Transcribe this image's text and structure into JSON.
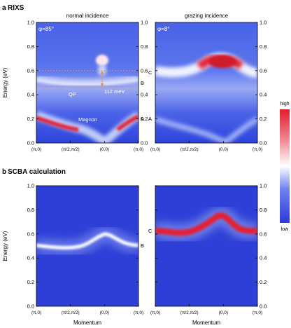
{
  "panel_a": {
    "label": "a",
    "heading": "RIXS",
    "left_title": "normal incidence",
    "right_title": "grazing incidence",
    "left_phi": "φ=85°",
    "right_phi": "φ=8°",
    "qp_label": "QP",
    "magnon_label": "Magnon",
    "gap_label": "112 meV",
    "side_labels_left": [
      "B",
      "A"
    ],
    "side_labels_right": [
      "C",
      "A"
    ]
  },
  "panel_b": {
    "label": "b",
    "heading": "SCBA calculation",
    "side_label_left": "B",
    "side_label_right": "C"
  },
  "colorbar": {
    "high": "high",
    "low": "low",
    "colors": [
      "#2b3bd6",
      "#6f83f0",
      "#ffffff",
      "#f07e8c",
      "#e0202c"
    ]
  },
  "axes": {
    "ylabel": "Energy (eV)",
    "xlabel": "Momentum",
    "yticks": [
      "0.0",
      "0.2",
      "0.4",
      "0.6",
      "0.8",
      "1.0"
    ],
    "xticks": [
      "(π,0)",
      "(π/2,π/2)",
      "(0,0)",
      "(π,0)"
    ]
  },
  "chart_data": [
    {
      "type": "heatmap",
      "panel": "a",
      "geometry": "normal incidence",
      "title": "normal incidence",
      "ylim": [
        0,
        1.0
      ],
      "x_ticks": [
        "(π,0)",
        "(π/2,π/2)",
        "(0,0)",
        "(π,0)"
      ],
      "features": [
        {
          "name": "Magnon",
          "points": [
            [
              0,
              0.22
            ],
            [
              0.5,
              0.1
            ],
            [
              1.0,
              0.02
            ],
            [
              1.5,
              0.2
            ]
          ]
        },
        {
          "name": "QP",
          "points": [
            [
              0,
              0.5
            ],
            [
              0.5,
              0.47
            ],
            [
              1.0,
              0.47
            ],
            [
              1.5,
              0.5
            ]
          ]
        }
      ],
      "guide_lines_eV": [
        0.59,
        0.47
      ],
      "annotation": {
        "text": "112 meV",
        "from": 0.47,
        "to": 0.59
      }
    },
    {
      "type": "heatmap",
      "panel": "a",
      "geometry": "grazing incidence",
      "title": "grazing incidence",
      "ylim": [
        0,
        1.0
      ],
      "x_ticks": [
        "(π,0)",
        "(π/2,π/2)",
        "(0,0)",
        "(π,0)"
      ],
      "features": [
        {
          "points": [
            [
              0,
              0.6
            ],
            [
              0.5,
              0.58
            ],
            [
              1.0,
              0.7
            ],
            [
              1.5,
              0.62
            ]
          ]
        },
        {
          "points": [
            [
              0,
              0.17
            ],
            [
              0.5,
              0.08
            ],
            [
              1.0,
              0.02
            ],
            [
              1.5,
              0.17
            ]
          ]
        }
      ]
    },
    {
      "type": "heatmap",
      "panel": "b",
      "title": "",
      "ylim": [
        0,
        1.0
      ],
      "x_ticks": [
        "(π,0)",
        "(π/2,π/2)",
        "(0,0)",
        "(π,0)"
      ],
      "xlabel": "Momentum",
      "ylabel": "Energy (eV)",
      "features": [
        {
          "points": [
            [
              0,
              0.5
            ],
            [
              0.25,
              0.48
            ],
            [
              0.5,
              0.48
            ],
            [
              0.75,
              0.52
            ],
            [
              1.0,
              0.58
            ],
            [
              1.25,
              0.52
            ],
            [
              1.5,
              0.5
            ]
          ]
        }
      ]
    },
    {
      "type": "heatmap",
      "panel": "b",
      "title": "",
      "ylim": [
        0,
        1.0
      ],
      "x_ticks": [
        "(π,0)",
        "(π/2,π/2)",
        "(0,0)",
        "(π,0)"
      ],
      "xlabel": "Momentum",
      "features": [
        {
          "points": [
            [
              0,
              0.62
            ],
            [
              0.25,
              0.6
            ],
            [
              0.5,
              0.62
            ],
            [
              0.75,
              0.68
            ],
            [
              1.0,
              0.75
            ],
            [
              1.25,
              0.64
            ],
            [
              1.5,
              0.62
            ]
          ]
        }
      ]
    }
  ]
}
